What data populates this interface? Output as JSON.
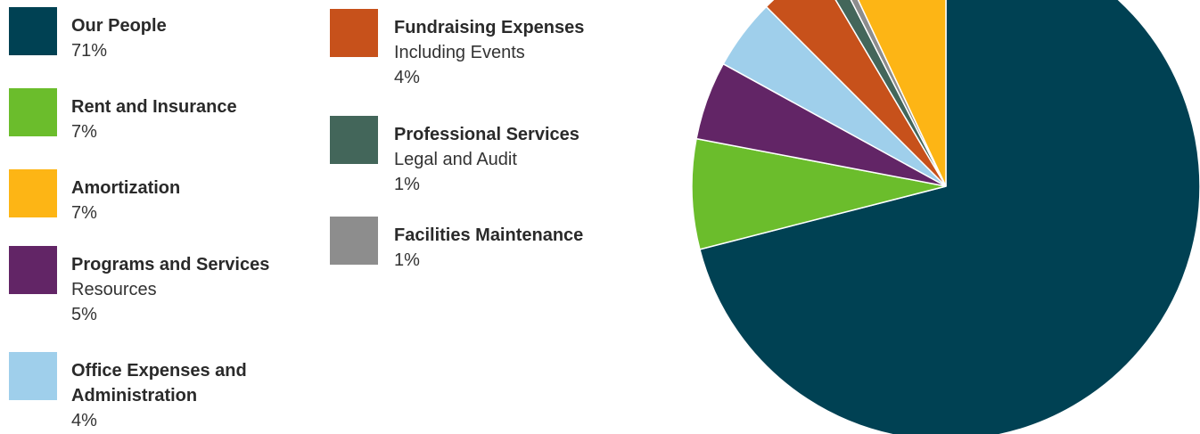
{
  "chart_data": {
    "type": "pie",
    "title": "",
    "slices": [
      {
        "name": "Our People",
        "subtitle": "",
        "label_pct": "71%",
        "value": 71,
        "color": "#004153"
      },
      {
        "name": "Rent and Insurance",
        "subtitle": "",
        "label_pct": "7%",
        "value": 7,
        "color": "#6bbd2c"
      },
      {
        "name": "Programs and Services",
        "subtitle": "Resources",
        "label_pct": "5%",
        "value": 5,
        "color": "#622566"
      },
      {
        "name": "Office Expenses and Administration",
        "subtitle": "",
        "label_pct": "4%",
        "value": 4.5,
        "color": "#9fcfeb"
      },
      {
        "name": "Fundraising Expenses",
        "subtitle": "Including Events",
        "label_pct": "4%",
        "value": 4,
        "color": "#c7511b"
      },
      {
        "name": "Professional Services",
        "subtitle": "Legal and Audit",
        "label_pct": "1%",
        "value": 1,
        "color": "#43665a"
      },
      {
        "name": "Facilities Maintenance",
        "subtitle": "",
        "label_pct": "1%",
        "value": 0.5,
        "color": "#8d8d8d"
      },
      {
        "name": "Amortization",
        "subtitle": "",
        "label_pct": "7%",
        "value": 7,
        "color": "#fdb515"
      }
    ],
    "legend": {
      "left": [
        {
          "title_line1": "Our People",
          "title_line2": "",
          "subtitle": "",
          "pct": "71%",
          "color": "#004153"
        },
        {
          "title_line1": "Rent and Insurance",
          "title_line2": "",
          "subtitle": "",
          "pct": "7%",
          "color": "#6bbd2c"
        },
        {
          "title_line1": "Amortization",
          "title_line2": "",
          "subtitle": "",
          "pct": "7%",
          "color": "#fdb515"
        },
        {
          "title_line1": "Programs and Services",
          "title_line2": "",
          "subtitle": "Resources",
          "pct": "5%",
          "color": "#622566"
        },
        {
          "title_line1": "Office Expenses and",
          "title_line2": "Administration",
          "subtitle": "",
          "pct": "4%",
          "color": "#9fcfeb"
        }
      ],
      "right": [
        {
          "title_line1": "Fundraising Expenses",
          "title_line2": "",
          "subtitle": "Including Events",
          "pct": "4%",
          "color": "#c7511b"
        },
        {
          "title_line1": "Professional Services",
          "title_line2": "",
          "subtitle": "Legal and Audit",
          "pct": "1%",
          "color": "#43665a"
        },
        {
          "title_line1": "Facilities Maintenance",
          "title_line2": "",
          "subtitle": "",
          "pct": "1%",
          "color": "#8d8d8d"
        }
      ]
    }
  }
}
